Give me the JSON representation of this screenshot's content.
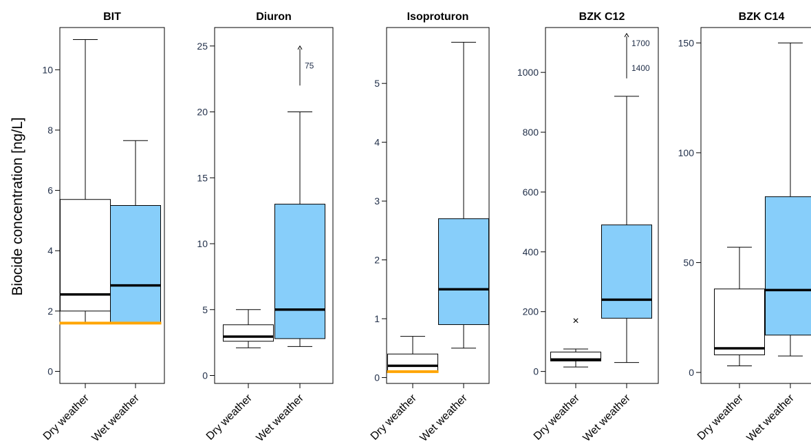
{
  "y_axis_label": "Biocide concentration [ng/L]",
  "colors": {
    "dry_fill": "#ffffff",
    "wet_fill": "#87cefa",
    "limit_line": "#ffa500",
    "stroke": "#000000",
    "tick_text": "#22304a"
  },
  "chart_data": [
    {
      "type": "box",
      "title": "BIT",
      "categories": [
        "Dry weather",
        "Wet weather"
      ],
      "ylim": [
        -0.4,
        11.4
      ],
      "yticks": [
        0,
        2,
        4,
        6,
        8,
        10
      ],
      "boxes": [
        {
          "whisker_low": 1.6,
          "q1": 2.0,
          "median": 2.55,
          "q3": 5.7,
          "whisker_high": 11.0
        },
        {
          "whisker_low": 1.6,
          "q1": 1.6,
          "median": 2.85,
          "q3": 5.5,
          "whisker_high": 7.65
        }
      ],
      "limit_line": {
        "value": 1.6,
        "from_cat": 0,
        "to_cat": 1
      }
    },
    {
      "type": "box",
      "title": "Diuron",
      "categories": [
        "Dry weather",
        "Wet weather"
      ],
      "ylim": [
        -0.6,
        26.4
      ],
      "yticks": [
        0,
        5,
        10,
        15,
        20,
        25
      ],
      "boxes": [
        {
          "whisker_low": 2.1,
          "q1": 2.6,
          "median": 2.95,
          "q3": 3.85,
          "whisker_high": 5.0
        },
        {
          "whisker_low": 2.2,
          "q1": 2.8,
          "median": 5.0,
          "q3": 13.0,
          "whisker_high": 20.0
        }
      ],
      "arrows": [
        {
          "cat": 1,
          "from": 22.0,
          "to": 25.0,
          "labels": [
            "75"
          ]
        }
      ]
    },
    {
      "type": "box",
      "title": "Isoproturon",
      "categories": [
        "Dry weather",
        "Wet weather"
      ],
      "ylim": [
        -0.1,
        5.95
      ],
      "yticks": [
        0,
        1,
        2,
        3,
        4,
        5
      ],
      "boxes": [
        {
          "whisker_low": 0.1,
          "q1": 0.1,
          "median": 0.2,
          "q3": 0.4,
          "whisker_high": 0.7
        },
        {
          "whisker_low": 0.5,
          "q1": 0.9,
          "median": 1.5,
          "q3": 2.7,
          "whisker_high": 5.7
        }
      ],
      "limit_line": {
        "value": 0.1,
        "from_cat": 0,
        "to_cat": 0
      }
    },
    {
      "type": "box",
      "title": "BZK C12",
      "categories": [
        "Dry weather",
        "Wet weather"
      ],
      "ylim": [
        -40,
        1150
      ],
      "yticks": [
        0,
        200,
        400,
        600,
        800,
        1000
      ],
      "boxes": [
        {
          "whisker_low": 15,
          "q1": 35,
          "median": 40,
          "q3": 65,
          "whisker_high": 75
        },
        {
          "whisker_low": 30,
          "q1": 178,
          "median": 240,
          "q3": 490,
          "whisker_high": 920
        }
      ],
      "outliers": [
        {
          "cat": 0,
          "value": 170
        }
      ],
      "arrows": [
        {
          "cat": 1,
          "from": 980,
          "to": 1130,
          "labels": [
            "1700",
            "1400"
          ]
        }
      ]
    },
    {
      "type": "box",
      "title": "BZK C14",
      "categories": [
        "Dry weather",
        "Wet weather"
      ],
      "ylim": [
        -5,
        157
      ],
      "yticks": [
        0,
        50,
        100,
        150
      ],
      "boxes": [
        {
          "whisker_low": 3,
          "q1": 8,
          "median": 11,
          "q3": 38,
          "whisker_high": 57
        },
        {
          "whisker_low": 7.5,
          "q1": 17,
          "median": 37.5,
          "q3": 80,
          "whisker_high": 150
        }
      ]
    }
  ]
}
